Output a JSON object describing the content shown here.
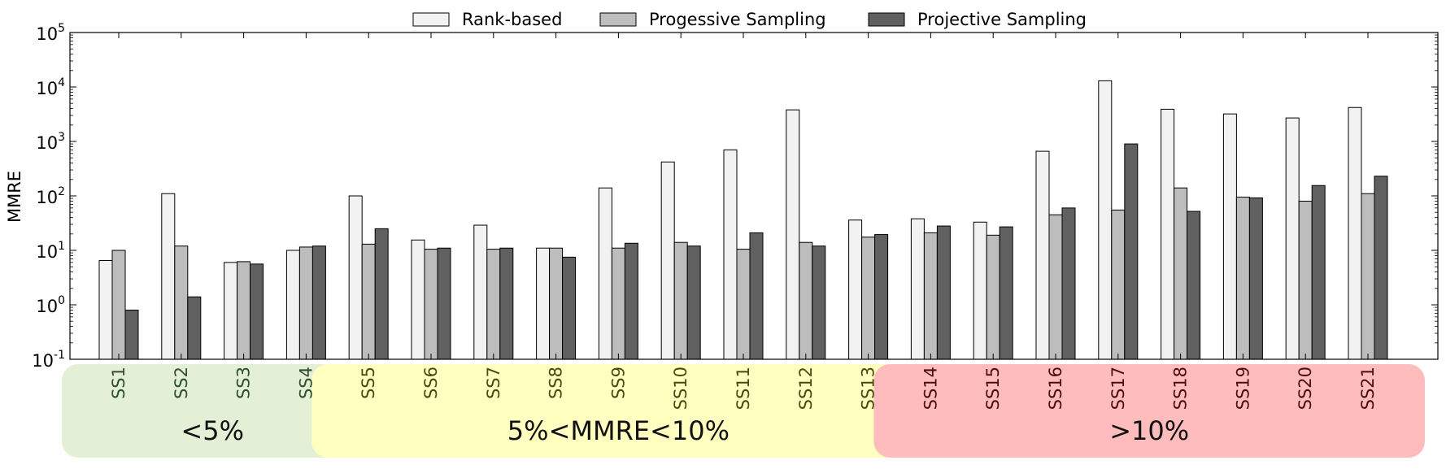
{
  "chart_data": {
    "type": "bar",
    "title": "",
    "xlabel": "",
    "ylabel": "MMRE",
    "yscale": "log",
    "ylim": [
      0.1,
      100000
    ],
    "y_ticks": [
      {
        "base": "10",
        "exp": "-1",
        "value": 0.1
      },
      {
        "base": "10",
        "exp": "0",
        "value": 1
      },
      {
        "base": "10",
        "exp": "1",
        "value": 10
      },
      {
        "base": "10",
        "exp": "2",
        "value": 100
      },
      {
        "base": "10",
        "exp": "3",
        "value": 1000
      },
      {
        "base": "10",
        "exp": "4",
        "value": 10000
      },
      {
        "base": "10",
        "exp": "5",
        "value": 100000
      }
    ],
    "grid": false,
    "legend_position": "top-center",
    "categories": [
      "SS1",
      "SS2",
      "SS3",
      "SS4",
      "SS5",
      "SS6",
      "SS7",
      "SS8",
      "SS9",
      "SS10",
      "SS11",
      "SS12",
      "SS13",
      "SS14",
      "SS15",
      "SS16",
      "SS17",
      "SS18",
      "SS19",
      "SS20",
      "SS21"
    ],
    "series": [
      {
        "name": "Rank-based",
        "color": "#f2f2f2",
        "values": [
          6.5,
          110,
          6.0,
          10,
          100,
          15.5,
          29,
          11,
          140,
          420,
          700,
          3800,
          36,
          38,
          33,
          660,
          13000,
          3900,
          3200,
          2700,
          4200
        ]
      },
      {
        "name": "Progessive Sampling",
        "color": "#bdbdbd",
        "values": [
          10,
          12,
          6.2,
          11.5,
          13,
          10.5,
          10.5,
          11,
          11,
          14,
          10.5,
          14,
          17.5,
          21,
          19,
          45,
          55,
          140,
          95,
          80,
          110
        ]
      },
      {
        "name": "Projective Sampling",
        "color": "#606060",
        "values": [
          0.8,
          1.4,
          5.6,
          12,
          25,
          11,
          11,
          7.5,
          13.5,
          12,
          21,
          12,
          19.5,
          28,
          27,
          60,
          900,
          52,
          92,
          155,
          230
        ]
      }
    ],
    "groups": [
      {
        "label": "<5%",
        "first": 0,
        "last": 3,
        "color": "#e3f0d6"
      },
      {
        "label": "5%<MMRE<10%",
        "first": 4,
        "last": 12,
        "color": "#ffffc0"
      },
      {
        "label": ">10%",
        "first": 13,
        "last": 20,
        "color": "#ffbcbc"
      }
    ]
  }
}
